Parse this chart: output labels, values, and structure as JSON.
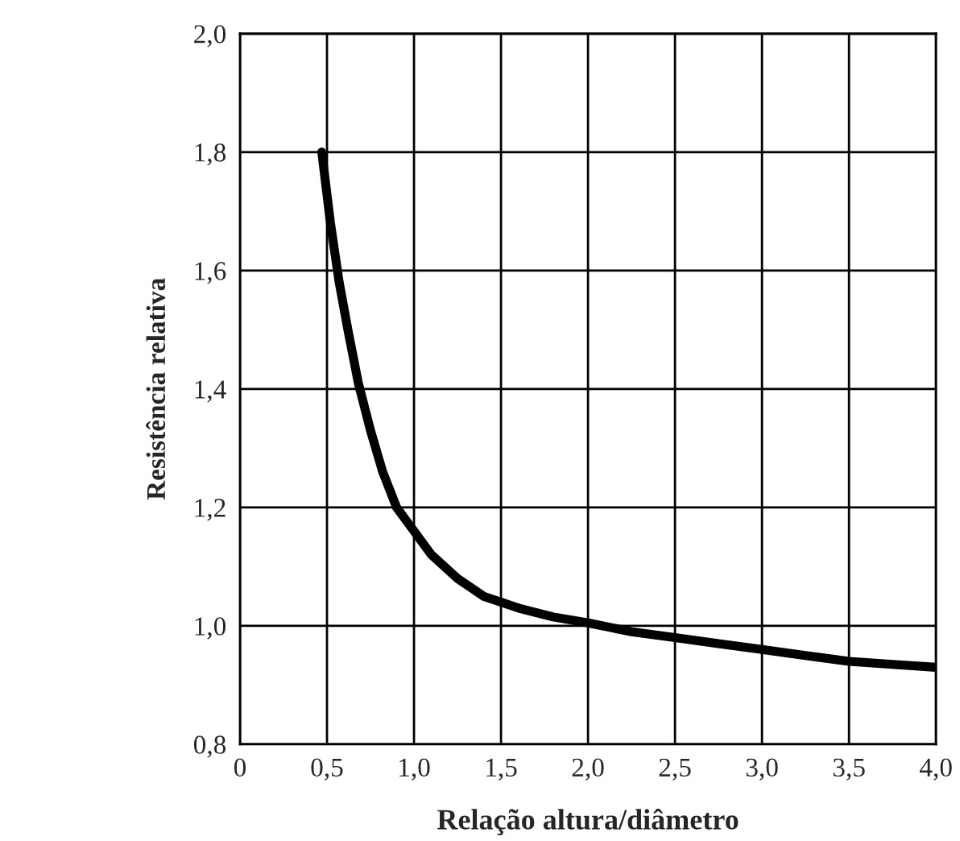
{
  "chart_data": {
    "type": "line",
    "xlabel": "Relação altura/diâmetro",
    "ylabel": "Resistência relativa",
    "x": [
      0.47,
      0.52,
      0.57,
      0.62,
      0.68,
      0.75,
      0.82,
      0.9,
      1.0,
      1.1,
      1.25,
      1.4,
      1.6,
      1.8,
      2.0,
      2.25,
      2.5,
      2.75,
      3.0,
      3.25,
      3.5,
      3.75,
      4.0
    ],
    "series": [
      {
        "color": "#000000",
        "values": [
          1.8,
          1.68,
          1.58,
          1.5,
          1.41,
          1.33,
          1.26,
          1.2,
          1.16,
          1.12,
          1.08,
          1.05,
          1.03,
          1.015,
          1.005,
          0.99,
          0.98,
          0.97,
          0.96,
          0.95,
          0.94,
          0.935,
          0.93
        ]
      }
    ],
    "xlim": [
      0,
      4
    ],
    "ylim": [
      0.8,
      2.0
    ],
    "xticks": [
      0,
      {
        "value": 0.5,
        "label": "0,5"
      },
      {
        "value": 1.0,
        "label": "1,0"
      },
      {
        "value": 1.5,
        "label": "1,5"
      },
      {
        "value": 2.0,
        "label": "2,0"
      },
      {
        "value": 2.5,
        "label": "2,5"
      },
      {
        "value": 3.0,
        "label": "3,0"
      },
      {
        "value": 3.5,
        "label": "3,5"
      },
      {
        "value": 4.0,
        "label": "4,0"
      }
    ],
    "yticks": [
      {
        "value": 0.8,
        "label": "0,8"
      },
      {
        "value": 1.0,
        "label": "1,0"
      },
      {
        "value": 1.2,
        "label": "1,2"
      },
      {
        "value": 1.4,
        "label": "1,4"
      },
      {
        "value": 1.6,
        "label": "1,6"
      },
      {
        "value": 1.8,
        "label": "1,8"
      },
      {
        "value": 2.0,
        "label": "2,0"
      }
    ],
    "grid": true,
    "line_style": "solid"
  }
}
